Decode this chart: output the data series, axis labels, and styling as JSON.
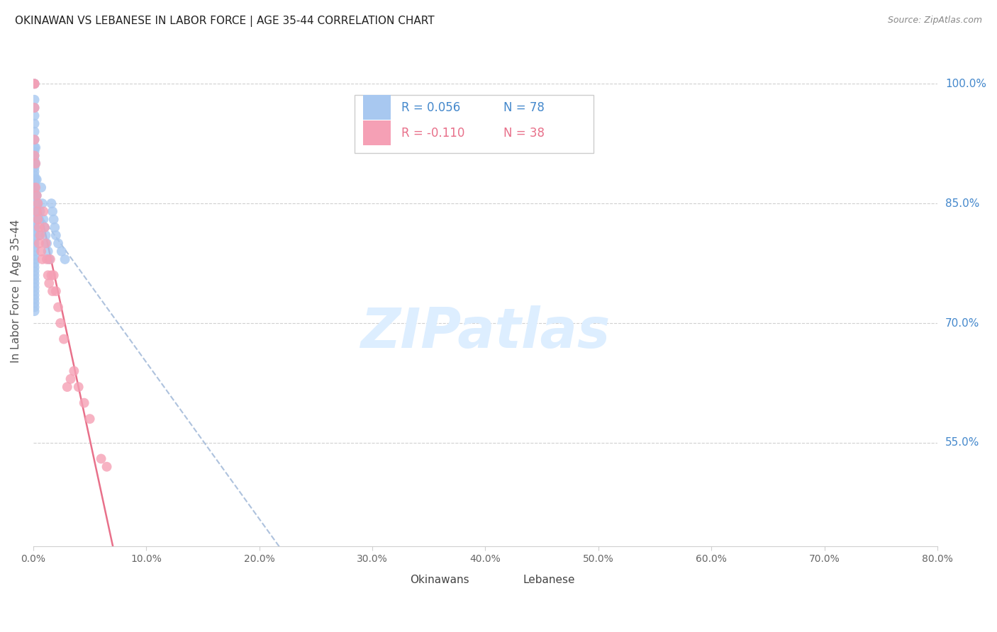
{
  "title": "OKINAWAN VS LEBANESE IN LABOR FORCE | AGE 35-44 CORRELATION CHART",
  "source": "Source: ZipAtlas.com",
  "ylabel": "In Labor Force | Age 35-44",
  "ytick_vals": [
    1.0,
    0.85,
    0.7,
    0.55
  ],
  "ytick_labels": [
    "100.0%",
    "85.0%",
    "70.0%",
    "55.0%"
  ],
  "xtick_vals": [
    0.0,
    0.1,
    0.2,
    0.3,
    0.4,
    0.5,
    0.6,
    0.7,
    0.8
  ],
  "xtick_labels": [
    "0.0%",
    "10.0%",
    "20.0%",
    "30.0%",
    "40.0%",
    "50.0%",
    "60.0%",
    "70.0%",
    "80.0%"
  ],
  "xlim": [
    0.0,
    0.8
  ],
  "ylim": [
    0.42,
    1.06
  ],
  "legend_r1": "R = 0.056",
  "legend_n1": "N = 78",
  "legend_r2": "R = -0.110",
  "legend_n2": "N = 38",
  "color_okinawan": "#a8c8f0",
  "color_lebanese": "#f5a0b5",
  "color_trend_ok": "#a0b8d8",
  "color_trend_lb": "#e8708a",
  "color_grid": "#d0d0d0",
  "color_title": "#222222",
  "color_source": "#888888",
  "color_ylabel": "#555555",
  "color_ytick": "#4488cc",
  "color_xtick": "#666666",
  "color_watermark": "#ddeeff",
  "watermark_text": "ZIPatlas",
  "bottom_label1": "Okinawans",
  "bottom_label2": "Lebanese",
  "background": "#ffffff",
  "ok_x": [
    0.001,
    0.001,
    0.001,
    0.001,
    0.001,
    0.001,
    0.001,
    0.001,
    0.001,
    0.001,
    0.001,
    0.001,
    0.001,
    0.001,
    0.001,
    0.001,
    0.001,
    0.001,
    0.001,
    0.001,
    0.001,
    0.001,
    0.001,
    0.001,
    0.001,
    0.001,
    0.001,
    0.001,
    0.001,
    0.001,
    0.001,
    0.001,
    0.001,
    0.001,
    0.001,
    0.001,
    0.001,
    0.001,
    0.001,
    0.001,
    0.001,
    0.001,
    0.001,
    0.001,
    0.001,
    0.001,
    0.001,
    0.001,
    0.001,
    0.001,
    0.002,
    0.002,
    0.002,
    0.002,
    0.002,
    0.002,
    0.003,
    0.003,
    0.004,
    0.005,
    0.005,
    0.006,
    0.007,
    0.008,
    0.009,
    0.01,
    0.011,
    0.012,
    0.013,
    0.014,
    0.016,
    0.017,
    0.018,
    0.019,
    0.02,
    0.022,
    0.025,
    0.028
  ],
  "ok_y": [
    1.0,
    1.0,
    0.98,
    0.97,
    0.96,
    0.95,
    0.94,
    0.93,
    0.92,
    0.915,
    0.91,
    0.905,
    0.9,
    0.895,
    0.89,
    0.885,
    0.88,
    0.875,
    0.87,
    0.865,
    0.86,
    0.855,
    0.85,
    0.845,
    0.84,
    0.835,
    0.83,
    0.825,
    0.82,
    0.815,
    0.81,
    0.805,
    0.8,
    0.795,
    0.79,
    0.785,
    0.78,
    0.775,
    0.77,
    0.765,
    0.76,
    0.755,
    0.75,
    0.745,
    0.74,
    0.735,
    0.73,
    0.725,
    0.72,
    0.715,
    0.92,
    0.9,
    0.88,
    0.86,
    0.84,
    0.82,
    0.88,
    0.86,
    0.85,
    0.83,
    0.81,
    0.84,
    0.87,
    0.85,
    0.83,
    0.82,
    0.81,
    0.8,
    0.79,
    0.78,
    0.85,
    0.84,
    0.83,
    0.82,
    0.81,
    0.8,
    0.79,
    0.78
  ],
  "lb_x": [
    0.001,
    0.001,
    0.001,
    0.001,
    0.001,
    0.002,
    0.002,
    0.003,
    0.003,
    0.004,
    0.004,
    0.005,
    0.005,
    0.006,
    0.007,
    0.008,
    0.009,
    0.01,
    0.011,
    0.012,
    0.013,
    0.014,
    0.015,
    0.016,
    0.017,
    0.018,
    0.02,
    0.022,
    0.024,
    0.027,
    0.03,
    0.033,
    0.036,
    0.04,
    0.045,
    0.05,
    0.06,
    0.065
  ],
  "lb_y": [
    1.0,
    1.0,
    0.97,
    0.93,
    0.91,
    0.9,
    0.87,
    0.86,
    0.84,
    0.83,
    0.85,
    0.82,
    0.8,
    0.81,
    0.79,
    0.78,
    0.84,
    0.82,
    0.8,
    0.78,
    0.76,
    0.75,
    0.78,
    0.76,
    0.74,
    0.76,
    0.74,
    0.72,
    0.7,
    0.68,
    0.62,
    0.63,
    0.64,
    0.62,
    0.6,
    0.58,
    0.53,
    0.52
  ]
}
